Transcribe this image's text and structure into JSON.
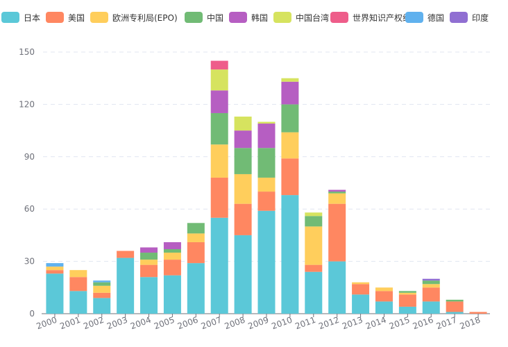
{
  "chart_data": {
    "type": "bar",
    "stacked": true,
    "categories": [
      "2000",
      "2001",
      "2002",
      "2003",
      "2004",
      "2005",
      "2006",
      "2007",
      "2008",
      "2009",
      "2010",
      "2011",
      "2012",
      "2013",
      "2014",
      "2015",
      "2016",
      "2017",
      "2018"
    ],
    "ylim": [
      0,
      150
    ],
    "yticks": [
      0,
      30,
      60,
      90,
      120,
      150
    ],
    "grid": true,
    "legend_position": "top",
    "series": [
      {
        "name": "日本",
        "color": "#5bc8d8",
        "values": [
          23,
          13,
          9,
          32,
          21,
          22,
          29,
          55,
          45,
          59,
          68,
          24,
          30,
          11,
          7,
          4,
          7,
          1,
          0
        ]
      },
      {
        "name": "美国",
        "color": "#ff8761",
        "values": [
          2,
          8,
          3,
          4,
          7,
          9,
          12,
          23,
          18,
          11,
          21,
          4,
          33,
          6,
          6,
          7,
          8,
          6,
          1
        ]
      },
      {
        "name": "欧洲专利局(EPO)",
        "color": "#ffce5c",
        "values": [
          2,
          4,
          4,
          0,
          3,
          4,
          5,
          19,
          17,
          8,
          15,
          22,
          6,
          1,
          2,
          1,
          2,
          0,
          0
        ]
      },
      {
        "name": "中国",
        "color": "#71bb75",
        "values": [
          0,
          0,
          2,
          0,
          4,
          2,
          6,
          18,
          15,
          17,
          16,
          6,
          1,
          0,
          0,
          1,
          2,
          1,
          0
        ]
      },
      {
        "name": "韩国",
        "color": "#b65ec2",
        "values": [
          0,
          0,
          0,
          0,
          3,
          4,
          0,
          13,
          10,
          14,
          13,
          0,
          1,
          0,
          0,
          0,
          0,
          0,
          0
        ]
      },
      {
        "name": "中国台湾",
        "color": "#d6e35f",
        "values": [
          0,
          0,
          0,
          0,
          0,
          0,
          0,
          12,
          8,
          1,
          2,
          2,
          0,
          0,
          0,
          0,
          0,
          0,
          0
        ]
      },
      {
        "name": "世界知识产权组织",
        "color": "#ee5d8a",
        "values": [
          0,
          0,
          0,
          0,
          0,
          0,
          0,
          5,
          0,
          0,
          0,
          0,
          0,
          0,
          0,
          0,
          0,
          0,
          0
        ]
      },
      {
        "name": "德国",
        "color": "#60b1ee",
        "values": [
          2,
          0,
          1,
          0,
          0,
          0,
          0,
          0,
          0,
          0,
          0,
          0,
          0,
          0,
          0,
          0,
          0,
          0,
          0
        ]
      },
      {
        "name": "印度",
        "color": "#906fd2",
        "values": [
          0,
          0,
          0,
          0,
          0,
          0,
          0,
          0,
          0,
          0,
          0,
          0,
          0,
          0,
          0,
          0,
          1,
          0,
          0
        ]
      }
    ]
  }
}
